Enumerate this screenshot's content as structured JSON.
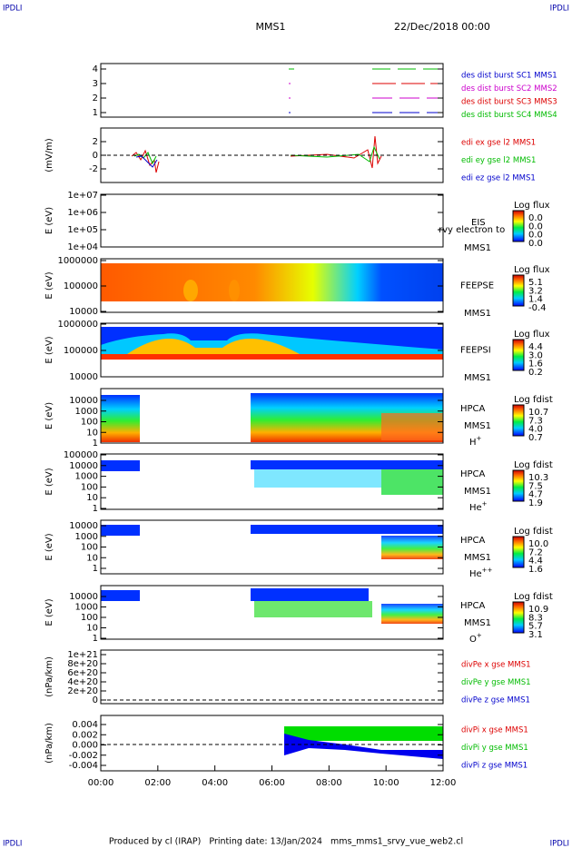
{
  "header": {
    "corner_left": "IPDLI",
    "corner_right": "IPDLI",
    "mission": "MMS1",
    "date": "22/Dec/2018 00:00"
  },
  "panels": [
    {
      "yticks": [
        "4",
        "3",
        "2",
        "1"
      ],
      "legend": [
        {
          "text": "des dist burst SC1 MMS1",
          "color": "#0000cc"
        },
        {
          "text": "des dist burst SC2 MMS2",
          "color": "#cc00cc"
        },
        {
          "text": "des dist burst SC3 MMS3",
          "color": "#dd0000"
        },
        {
          "text": "des dist burst SC4 MMS4",
          "color": "#00bb00"
        }
      ]
    },
    {
      "ylabel": "(mV/m)",
      "yticks": [
        "2",
        "0",
        "-2"
      ],
      "legend": [
        {
          "text": "edi ex gse l2 MMS1",
          "color": "#dd0000"
        },
        {
          "text": "edi ey gse l2 MMS1",
          "color": "#00bb00"
        },
        {
          "text": "edi ez gse l2 MMS1",
          "color": "#0000cc"
        }
      ]
    },
    {
      "ylabel": "E (eV)",
      "yticks": [
        "1e+07",
        "1e+06",
        "1e+05",
        "1e+04"
      ],
      "instrument": "EIS",
      "spacecraft": "MMS1",
      "note": "rvy electron to",
      "colorbar": {
        "title": "Log flux",
        "labels": [
          "0.0",
          "0.0",
          "0.0",
          "0.0"
        ]
      }
    },
    {
      "ylabel": "E (eV)",
      "yticks": [
        "1000000",
        "100000",
        "10000"
      ],
      "instrument": "FEEPSE",
      "spacecraft": "MMS1",
      "colorbar": {
        "title": "Log flux",
        "labels": [
          "5.1",
          "3.2",
          "1.4",
          "-0.4"
        ]
      }
    },
    {
      "ylabel": "E (eV)",
      "yticks": [
        "1000000",
        "100000",
        "10000"
      ],
      "instrument": "FEEPSI",
      "spacecraft": "MMS1",
      "colorbar": {
        "title": "Log flux",
        "labels": [
          "4.4",
          "3.0",
          "1.6",
          "0.2"
        ]
      }
    },
    {
      "ylabel": "E (eV)",
      "yticks": [
        "10000",
        "1000",
        "100",
        "10",
        "1"
      ],
      "instrument": "HPCA",
      "spacecraft": "MMS1",
      "species": {
        "name": "H",
        "charge": "+"
      },
      "colorbar": {
        "title": "Log fdist",
        "labels": [
          "10.7",
          "7.3",
          "4.0",
          "0.7"
        ]
      }
    },
    {
      "ylabel": "E (eV)",
      "yticks": [
        "100000",
        "10000",
        "1000",
        "100",
        "10",
        "1"
      ],
      "instrument": "HPCA",
      "spacecraft": "MMS1",
      "species": {
        "name": "He",
        "charge": "+"
      },
      "colorbar": {
        "title": "Log fdist",
        "labels": [
          "10.3",
          "7.5",
          "4.7",
          "1.9"
        ]
      }
    },
    {
      "ylabel": "E (eV)",
      "yticks": [
        "10000",
        "1000",
        "100",
        "10",
        "1"
      ],
      "instrument": "HPCA",
      "spacecraft": "MMS1",
      "species": {
        "name": "He",
        "charge": "++"
      },
      "colorbar": {
        "title": "Log fdist",
        "labels": [
          "10.0",
          "7.2",
          "4.4",
          "1.6"
        ]
      }
    },
    {
      "ylabel": "E (eV)",
      "yticks": [
        "10000",
        "1000",
        "100",
        "10",
        "1"
      ],
      "instrument": "HPCA",
      "spacecraft": "MMS1",
      "species": {
        "name": "O",
        "charge": "+"
      },
      "colorbar": {
        "title": "Log fdist",
        "labels": [
          "10.9",
          "8.3",
          "5.7",
          "3.1"
        ]
      }
    },
    {
      "ylabel": "(nPa/km)",
      "yticks": [
        "1e+21",
        "8e+20",
        "6e+20",
        "4e+20",
        "2e+20",
        "0"
      ],
      "legend": [
        {
          "text": "divPe x gse MMS1",
          "color": "#dd0000"
        },
        {
          "text": "divPe y gse MMS1",
          "color": "#00bb00"
        },
        {
          "text": "divPe z gse MMS1",
          "color": "#0000cc"
        }
      ]
    },
    {
      "ylabel": "(nPa/km)",
      "yticks": [
        "0.004",
        "0.002",
        "0.000",
        "-0.002",
        "-0.004"
      ],
      "legend": [
        {
          "text": "divPi x gse MMS1",
          "color": "#dd0000"
        },
        {
          "text": "divPi y gse MMS1",
          "color": "#00bb00"
        },
        {
          "text": "divPi z gse MMS1",
          "color": "#0000cc"
        }
      ]
    }
  ],
  "xticks": [
    "00:00",
    "02:00",
    "04:00",
    "06:00",
    "08:00",
    "10:00",
    "12:00"
  ],
  "footer": "Produced by cl (IRAP)   Printing date: 13/Jan/2024   mms_mms1_srvy_vue_web2.cl"
}
